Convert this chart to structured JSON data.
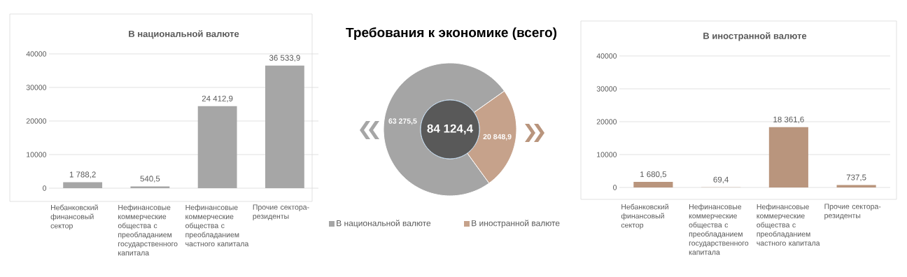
{
  "chart_data": [
    {
      "type": "bar",
      "title": "В национальной валюте",
      "categories": [
        "Небанковский финансовый сектор",
        "Нефинансовые коммерческие общества с преобладанием государственного капитала",
        "Нефинансовые коммерческие общества с преобладанием частного капитала",
        "Прочие сектора-резиденты"
      ],
      "values": [
        1788.2,
        540.5,
        24412.9,
        36533.9
      ],
      "value_labels": [
        "1 788,2",
        "540,5",
        "24 412,9",
        "36 533,9"
      ],
      "color": "#a6a6a6",
      "ylim": [
        0,
        40000
      ],
      "yticks": [
        0,
        10000,
        20000,
        30000,
        40000
      ],
      "grid": "y"
    },
    {
      "type": "donut",
      "title": "Требования к экономике (всего)",
      "categories": [
        "В национальной валюте",
        "В иностранной валюте"
      ],
      "values": [
        63275.5,
        20848.9
      ],
      "value_labels": [
        "63 275,5",
        "20 848,9"
      ],
      "colors": [
        "#a5a5a5",
        "#c6a28b"
      ],
      "annotations": [
        "84 124,4"
      ],
      "legend": "bottom"
    },
    {
      "type": "bar",
      "title": "В иностранной валюте",
      "categories": [
        "Небанковский финансовый сектор",
        "Нефинансовые коммерческие общества с преобладанием государственного капитала",
        "Нефинансовые коммерческие общества с преобладанием частного капитала",
        "Прочие сектора-резиденты"
      ],
      "values": [
        1680.5,
        69.4,
        18361.6,
        737.5
      ],
      "value_labels": [
        "1 680,5",
        "69,4",
        "18 361,6",
        "737,5"
      ],
      "color": "#b9957d",
      "ylim": [
        0,
        40000
      ],
      "yticks": [
        0,
        10000,
        20000,
        30000,
        40000
      ],
      "grid": "y"
    }
  ]
}
